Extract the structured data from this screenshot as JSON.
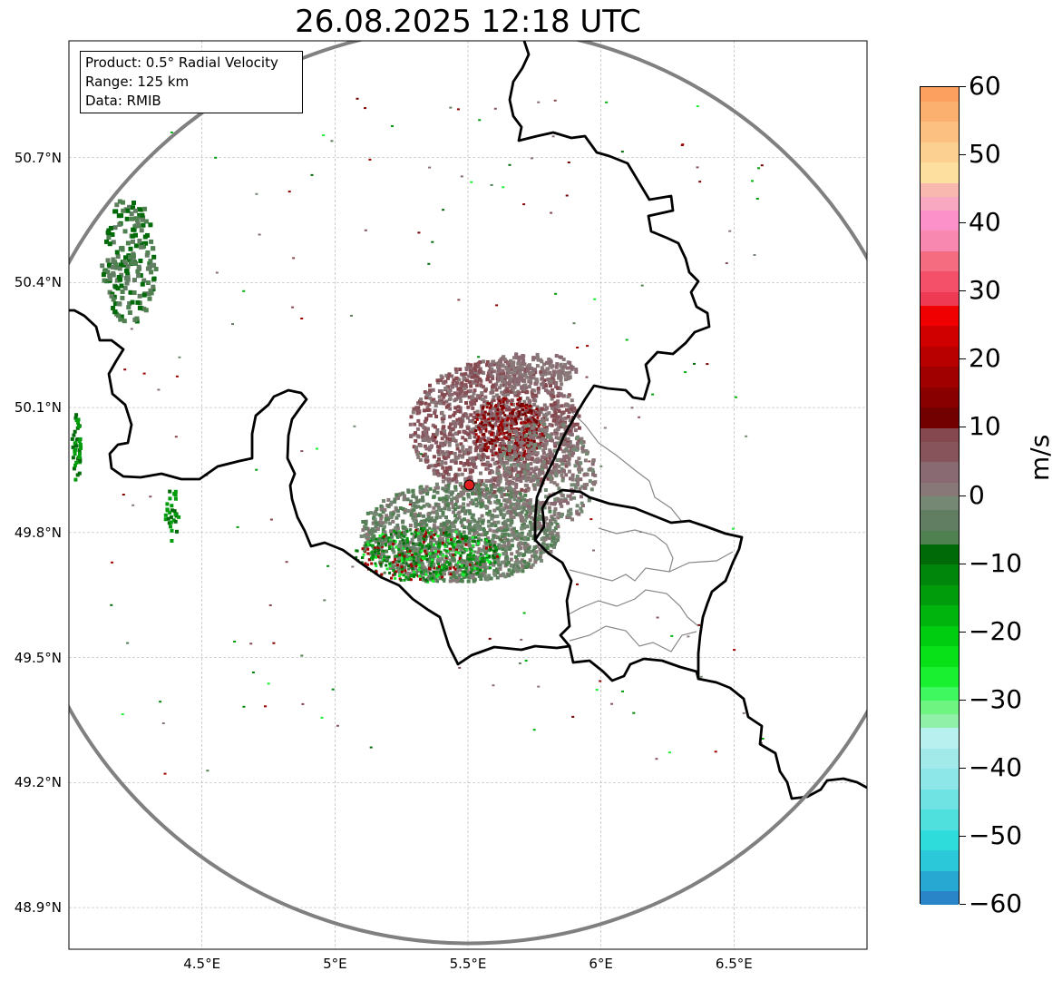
{
  "title": "26.08.2025 12:18 UTC",
  "info": {
    "product": "Product: 0.5° Radial Velocity",
    "range": "Range: 125 km",
    "source": "Data: RMIB"
  },
  "map": {
    "lon_range": [
      4.0,
      7.0
    ],
    "lat_range": [
      48.8,
      50.98
    ],
    "lon_ticks": [
      {
        "value": 4.5,
        "label": "4.5°E"
      },
      {
        "value": 5.0,
        "label": "5°E"
      },
      {
        "value": 5.5,
        "label": "5.5°E"
      },
      {
        "value": 6.0,
        "label": "6°E"
      },
      {
        "value": 6.5,
        "label": "6.5°E"
      }
    ],
    "lat_ticks": [
      {
        "value": 50.7,
        "label": "50.7°N"
      },
      {
        "value": 50.4,
        "label": "50.4°N"
      },
      {
        "value": 50.1,
        "label": "50.1°N"
      },
      {
        "value": 49.8,
        "label": "49.8°N"
      },
      {
        "value": 49.5,
        "label": "49.5°N"
      },
      {
        "value": 49.2,
        "label": "49.2°N"
      },
      {
        "value": 48.9,
        "label": "48.9°N"
      }
    ],
    "radar_site": {
      "lon": 5.505,
      "lat": 49.914
    },
    "range_km": 125,
    "gridlines": true
  },
  "colorbar": {
    "unit": "m/s",
    "min": -60,
    "max": 60,
    "ticks": [
      {
        "value": 60,
        "label": "60"
      },
      {
        "value": 50,
        "label": "50"
      },
      {
        "value": 40,
        "label": "40"
      },
      {
        "value": 30,
        "label": "30"
      },
      {
        "value": 20,
        "label": "20"
      },
      {
        "value": 10,
        "label": "10"
      },
      {
        "value": 0,
        "label": "0"
      },
      {
        "value": -10,
        "label": "−10"
      },
      {
        "value": -20,
        "label": "−20"
      },
      {
        "value": -30,
        "label": "−30"
      },
      {
        "value": -40,
        "label": "−40"
      },
      {
        "value": -50,
        "label": "−50"
      },
      {
        "value": -60,
        "label": "−60"
      }
    ],
    "stops": [
      {
        "from": -60,
        "to": -58,
        "color": "#2a84c8"
      },
      {
        "from": -58,
        "to": -55,
        "color": "#26a8d2"
      },
      {
        "from": -55,
        "to": -52,
        "color": "#2ac8d8"
      },
      {
        "from": -52,
        "to": -49,
        "color": "#2edcdc"
      },
      {
        "from": -49,
        "to": -46,
        "color": "#4fe0de"
      },
      {
        "from": -46,
        "to": -43,
        "color": "#6fe3e3"
      },
      {
        "from": -43,
        "to": -40,
        "color": "#8de6e8"
      },
      {
        "from": -40,
        "to": -37,
        "color": "#a2eaea"
      },
      {
        "from": -37,
        "to": -34,
        "color": "#b8f0f0"
      },
      {
        "from": -34,
        "to": -32,
        "color": "#90f0a8"
      },
      {
        "from": -32,
        "to": -30,
        "color": "#6ef480"
      },
      {
        "from": -30,
        "to": -28,
        "color": "#3ff860"
      },
      {
        "from": -28,
        "to": -25,
        "color": "#18f030"
      },
      {
        "from": -25,
        "to": -22,
        "color": "#08e018"
      },
      {
        "from": -22,
        "to": -19,
        "color": "#00cc10"
      },
      {
        "from": -19,
        "to": -16,
        "color": "#00b40e"
      },
      {
        "from": -16,
        "to": -13,
        "color": "#009c0c"
      },
      {
        "from": -13,
        "to": -10,
        "color": "#00860a"
      },
      {
        "from": -10,
        "to": -7,
        "color": "#006a08"
      },
      {
        "from": -7,
        "to": -5,
        "color": "#4e8050"
      },
      {
        "from": -5,
        "to": -2,
        "color": "#627e62"
      },
      {
        "from": -2,
        "to": 0,
        "color": "#748874"
      },
      {
        "from": 0,
        "to": 2,
        "color": "#887878"
      },
      {
        "from": 2,
        "to": 5,
        "color": "#8a6a72"
      },
      {
        "from": 5,
        "to": 8,
        "color": "#88545c"
      },
      {
        "from": 8,
        "to": 10,
        "color": "#84484e"
      },
      {
        "from": 10,
        "to": 13,
        "color": "#720000"
      },
      {
        "from": 13,
        "to": 16,
        "color": "#880000"
      },
      {
        "from": 16,
        "to": 19,
        "color": "#a00000"
      },
      {
        "from": 19,
        "to": 22,
        "color": "#b80000"
      },
      {
        "from": 22,
        "to": 25,
        "color": "#d00000"
      },
      {
        "from": 25,
        "to": 28,
        "color": "#f00000"
      },
      {
        "from": 28,
        "to": 30,
        "color": "#ee3a52"
      },
      {
        "from": 30,
        "to": 33,
        "color": "#f4506a"
      },
      {
        "from": 33,
        "to": 36,
        "color": "#f56c80"
      },
      {
        "from": 36,
        "to": 39,
        "color": "#f888b0"
      },
      {
        "from": 39,
        "to": 42,
        "color": "#fc90c8"
      },
      {
        "from": 42,
        "to": 44,
        "color": "#f8a8c0"
      },
      {
        "from": 44,
        "to": 46,
        "color": "#f8b8b0"
      },
      {
        "from": 46,
        "to": 49,
        "color": "#fde0a0"
      },
      {
        "from": 49,
        "to": 52,
        "color": "#fcd090"
      },
      {
        "from": 52,
        "to": 55,
        "color": "#fcc080"
      },
      {
        "from": 55,
        "to": 58,
        "color": "#fcb070"
      },
      {
        "from": 58,
        "to": 60,
        "color": "#fca060"
      }
    ]
  }
}
